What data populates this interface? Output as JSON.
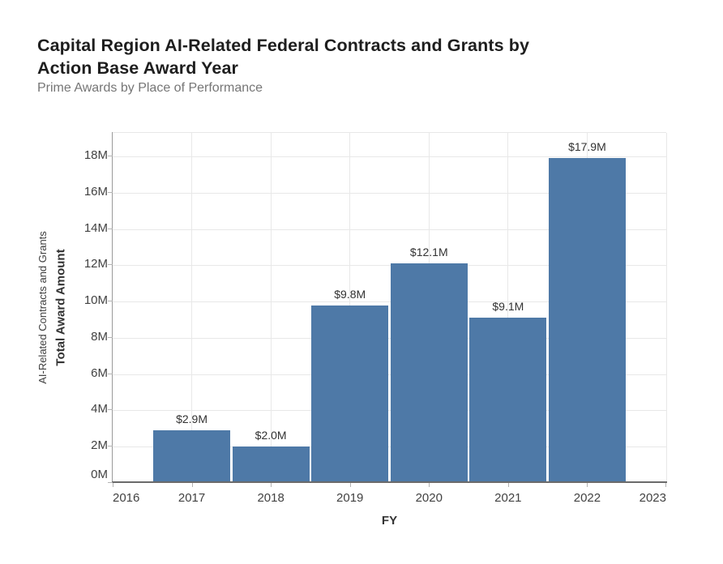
{
  "chart_data": {
    "type": "bar",
    "title": "Capital Region AI-Related Federal Contracts and Grants by Action Base Award Year",
    "subtitle": "Prime Awards by Place of Performance",
    "xlabel": "FY",
    "ylabel": "AI-Related Contracts and Grants Total Award Amount",
    "ylabel_lines": [
      "AI-Related Contracts and Grants",
      "Total Award Amount"
    ],
    "categories": [
      "2017",
      "2018",
      "2019",
      "2020",
      "2021",
      "2022"
    ],
    "values_millions": [
      2.9,
      2.0,
      9.8,
      12.1,
      9.1,
      17.9
    ],
    "bar_labels": [
      "$2.9M",
      "$2.0M",
      "$9.8M",
      "$12.1M",
      "$9.1M",
      "$17.9M"
    ],
    "x_ticks": [
      "2016",
      "2017",
      "2018",
      "2019",
      "2020",
      "2021",
      "2022",
      "2023"
    ],
    "y_ticks": [
      "0M",
      "2M",
      "4M",
      "6M",
      "8M",
      "10M",
      "12M",
      "14M",
      "16M",
      "18M"
    ],
    "xlim": [
      2016,
      2023
    ],
    "ylim_millions": [
      0,
      19.3
    ],
    "grid": true,
    "legend": "none",
    "bar_color": "#4e79a7"
  }
}
